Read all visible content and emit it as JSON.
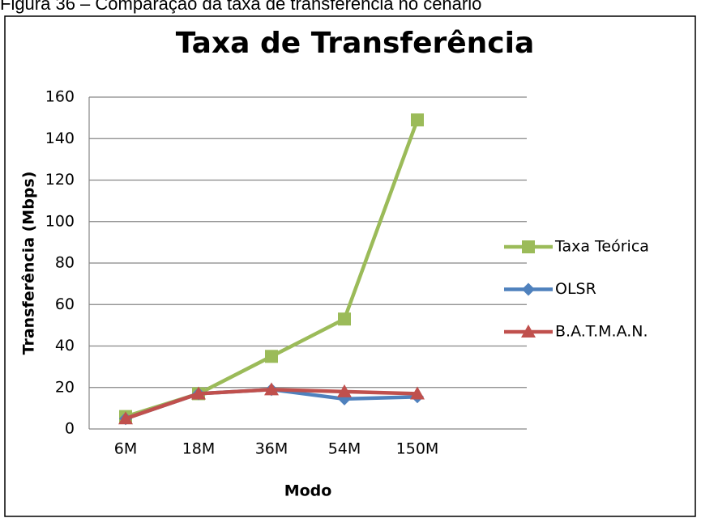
{
  "caption": "Figura 36 – Comparação da taxa de transferência no cenário",
  "chart_data": {
    "type": "line",
    "title": "Taxa de Transferência",
    "x_label": "Modo",
    "y_label": "Transferência (Mbps)",
    "categories": [
      "6M",
      "18M",
      "36M",
      "54M",
      "150M",
      null
    ],
    "series": [
      {
        "name": "Taxa Teórica",
        "color": "#9bbb59",
        "marker": "square",
        "values": [
          6,
          17,
          35,
          53,
          149,
          null
        ]
      },
      {
        "name": "OLSR",
        "color": "#4f81bd",
        "marker": "diamond",
        "values": [
          5,
          17,
          19,
          14.5,
          15.5,
          null
        ]
      },
      {
        "name": "B.A.T.M.A.N.",
        "color": "#c0504d",
        "marker": "triangle",
        "values": [
          5,
          17,
          19,
          18,
          17,
          null
        ]
      }
    ],
    "ylim": [
      0,
      160
    ],
    "yticks": [
      0,
      20,
      40,
      60,
      80,
      100,
      120,
      140,
      160
    ],
    "grid": true,
    "legend": "right"
  }
}
